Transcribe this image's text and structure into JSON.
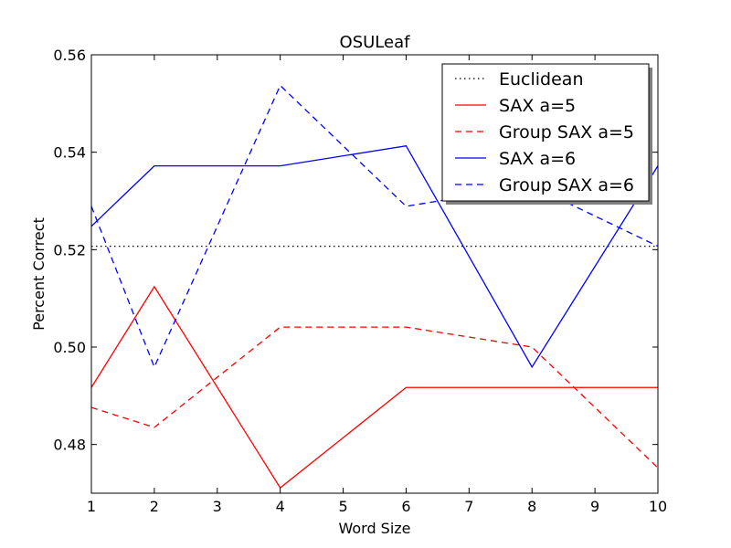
{
  "chart_data": {
    "type": "line",
    "title": "OSULeaf",
    "xlabel": "Word Size",
    "ylabel": "Percent Correct",
    "x": [
      1,
      2,
      4,
      6,
      8,
      10
    ],
    "xlim": [
      1,
      10
    ],
    "ylim": [
      0.47,
      0.56
    ],
    "xticks": [
      1,
      2,
      3,
      4,
      5,
      6,
      7,
      8,
      9,
      10
    ],
    "yticks": [
      0.48,
      0.5,
      0.52,
      0.54,
      0.56
    ],
    "ytick_labels": [
      "0.48",
      "0.50",
      "0.52",
      "0.54",
      "0.56"
    ],
    "grid": false,
    "legend_position": "top-right",
    "series": [
      {
        "name": "Euclidean",
        "color": "#000000",
        "style": "dotted",
        "values": [
          0.5207,
          0.5207,
          0.5207,
          0.5207,
          0.5207,
          0.5207
        ]
      },
      {
        "name": "SAX a=5",
        "color": "#ff0000",
        "style": "solid",
        "values": [
          0.4917,
          0.5124,
          0.4711,
          0.4917,
          0.4917,
          0.4917
        ]
      },
      {
        "name": "Group SAX a=5",
        "color": "#ff0000",
        "style": "dashed",
        "values": [
          0.4876,
          0.4835,
          0.5041,
          0.5041,
          0.5,
          0.4752
        ]
      },
      {
        "name": "SAX a=6",
        "color": "#0000ff",
        "style": "solid",
        "values": [
          0.5248,
          0.5372,
          0.5372,
          0.5413,
          0.4959,
          0.5372
        ]
      },
      {
        "name": "Group SAX a=6",
        "color": "#0000ff",
        "style": "dashed",
        "values": [
          0.5289,
          0.4959,
          0.5537,
          0.5289,
          0.5331,
          0.5207
        ]
      }
    ]
  }
}
